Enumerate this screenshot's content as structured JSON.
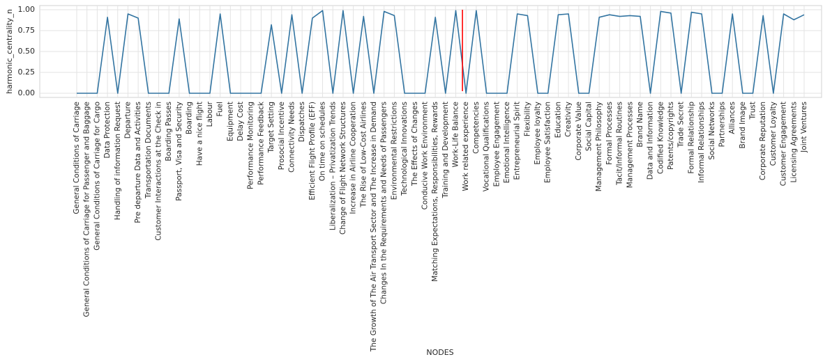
{
  "chart_data": {
    "type": "line",
    "xlabel": "NODES",
    "ylabel": "harmonic_centrality_n",
    "ylim": [
      -0.05,
      1.05
    ],
    "yticks": [
      "0.00",
      "0.25",
      "0.50",
      "0.75",
      "1.00"
    ],
    "ytick_values": [
      0,
      0.25,
      0.5,
      0.75,
      1.0
    ],
    "grid": true,
    "line_color": "#3274a1",
    "marker_color": "#ff0000",
    "marker_category": "Work related experience",
    "categories": [
      "General Conditions of Carriage",
      "General Conditions of Carriage for Passenger and Baggage",
      "General Conditions of Carriage for Cargo",
      "Data Protection",
      "Handling of information Request",
      "Departure",
      "Pre departure Data and Activities",
      "Transportation Documents",
      "Customer Interactions at the Check in",
      "Boarding Passes",
      "Passport, Visa and Security",
      "Boarding",
      "Have a nice flight",
      "Labour",
      "Fuel",
      "Equipment",
      "Delay Cost",
      "Performance Monitoring",
      "Performance Feedback",
      "Target Setting",
      "Prosocial Incentive",
      "Connectivity Needs",
      "Dispatches",
      "Efficient Flight Profile (EFF)",
      "On time on schedules",
      "Liberalization – Privatization Trends",
      "Change of Flight Network Structures",
      "Increase in Airline Cooperation",
      "The Rise of Low-Cost Airlines",
      "The Growth of The Air Transport Sector and The Increase in Demand",
      "Changes In the Requirements and Needs of Passengers",
      "Environmental Restrictions",
      "Technological Innovations",
      "The Effects of Changes",
      "Conducive Work Environment",
      "Matching Expectations, Responsibilities, Rewards",
      "Training and Development",
      "Work-Life Balance",
      "Work related experience",
      "Competencies",
      "Vocational Qualifications",
      "Employee Engagement",
      "Emotional Intelligence",
      "Entrepreneurial Spirit",
      "Flexibility",
      "Employee loyalty",
      "Employee Satisfaction",
      "Education",
      "Creativity",
      "Corporate Value",
      "Social Capital",
      "Management Philosophy",
      "Formal Processes",
      "Tacit/Informal Routines",
      "Management Processes",
      "Brand Name",
      "Data and Information",
      "Codified Knowledge",
      "Patents/copyrights",
      "Trade Secret",
      "Formal Relationship",
      "Informal Relationships",
      "Social Networks",
      "Partnerships",
      "Alliances",
      "Brand Image",
      "Trust",
      "Corporate Reputation",
      "Customer Loyalty",
      "Customer Engagement",
      "Licensing Agreements",
      "Joint Ventures"
    ],
    "values": [
      0,
      0,
      0,
      0.91,
      0,
      0.95,
      0.9,
      0,
      0,
      0,
      0.89,
      0,
      0,
      0,
      0.95,
      0,
      0,
      0,
      0,
      0.82,
      0,
      0.94,
      0,
      0.9,
      0.99,
      0,
      0.99,
      0,
      0.92,
      0,
      0.98,
      0.93,
      0,
      0,
      0,
      0.91,
      0,
      0.99,
      0,
      0.99,
      0,
      0,
      0,
      0.95,
      0.93,
      0,
      0,
      0.94,
      0.95,
      0,
      0,
      0.91,
      0.94,
      0.92,
      0.93,
      0.92,
      0,
      0.98,
      0.96,
      0,
      0.97,
      0.95,
      0,
      0,
      0.95,
      0,
      0,
      0.93,
      0,
      0.95,
      0.88,
      0.94
    ]
  }
}
